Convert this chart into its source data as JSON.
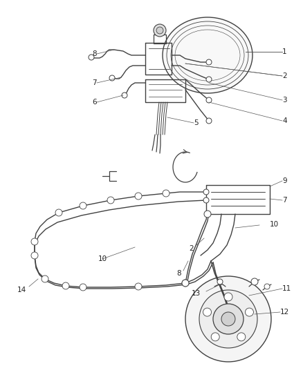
{
  "bg_color": "#ffffff",
  "line_color": "#404040",
  "line_width": 0.9,
  "font_size": 7.5,
  "label_color": "#222222",
  "figsize": [
    4.38,
    5.33
  ],
  "dpi": 100
}
